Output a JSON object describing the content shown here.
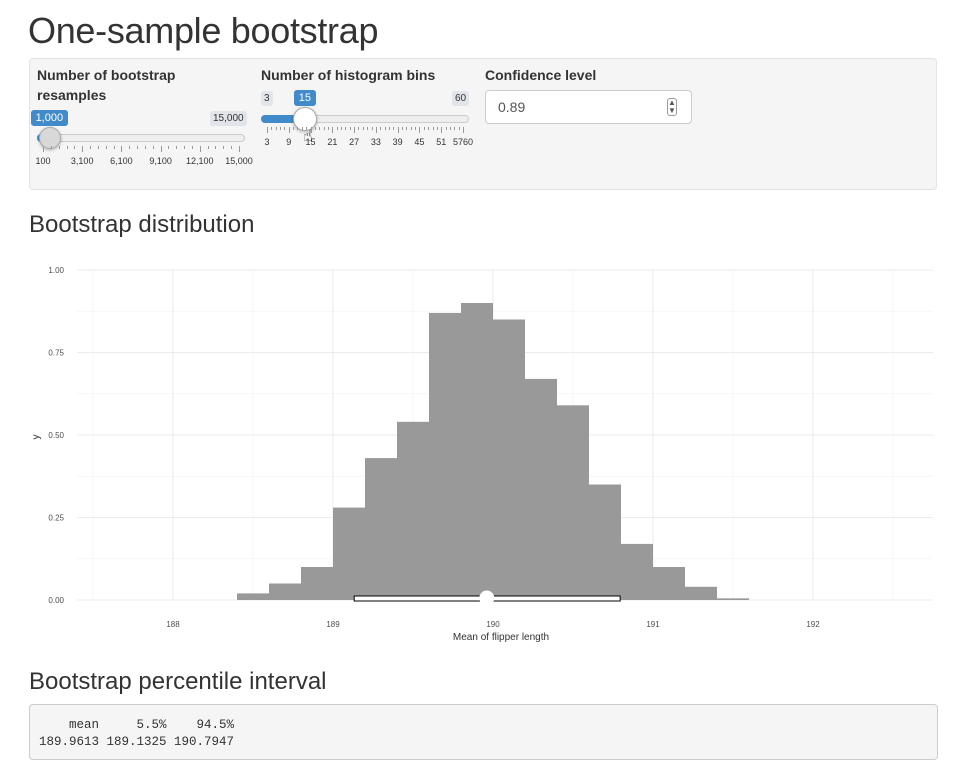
{
  "app": {
    "title": "One-sample bootstrap"
  },
  "controls": {
    "resamples": {
      "label": "Number of bootstrap resamples",
      "min_label": "100",
      "max_label": "15,000",
      "min": 100,
      "max": 15000,
      "value": 1000,
      "value_label": "1,000",
      "tick_labels": [
        "100",
        "3,100",
        "6,100",
        "9,100",
        "12,100",
        "15,000"
      ]
    },
    "bins": {
      "label": "Number of histogram bins",
      "min_label": "3",
      "max_label": "60",
      "min": 3,
      "max": 60,
      "value": 15,
      "value_label": "15",
      "tick_labels": [
        "3",
        "9",
        "15",
        "21",
        "27",
        "33",
        "39",
        "45",
        "51",
        "5760"
      ]
    },
    "confidence": {
      "label": "Confidence level",
      "value": "0.89"
    }
  },
  "sections": {
    "distribution_title": "Bootstrap distribution",
    "interval_title": "Bootstrap percentile interval"
  },
  "chart_data": {
    "type": "bar",
    "title": "",
    "xlabel": "Mean of flipper length",
    "ylabel": "y",
    "xlim": [
      187.4,
      192.75
    ],
    "ylim": [
      0,
      1.0
    ],
    "x_ticks": [
      188,
      189,
      190,
      191,
      192
    ],
    "y_ticks": [
      "0.00",
      "0.25",
      "0.50",
      "0.75",
      "1.00"
    ],
    "y_tick_values": [
      0,
      0.25,
      0.5,
      0.75,
      1.0
    ],
    "grid": true,
    "bar_color": "#999999",
    "bin_width": 0.2,
    "bin_starts": [
      188.4,
      188.6,
      188.8,
      189.0,
      189.2,
      189.4,
      189.6,
      189.8,
      190.0,
      190.2,
      190.4,
      190.6,
      190.8,
      191.0,
      191.2,
      191.4
    ],
    "values": [
      0.02,
      0.05,
      0.1,
      0.28,
      0.43,
      0.54,
      0.87,
      0.9,
      0.85,
      0.67,
      0.59,
      0.35,
      0.17,
      0.1,
      0.04,
      0.005
    ],
    "interval": {
      "mean": 189.9613,
      "lower": 189.1325,
      "upper": 190.7947
    }
  },
  "output": {
    "text": "    mean     5.5%    94.5% \n189.9613 189.1325 190.7947 "
  }
}
